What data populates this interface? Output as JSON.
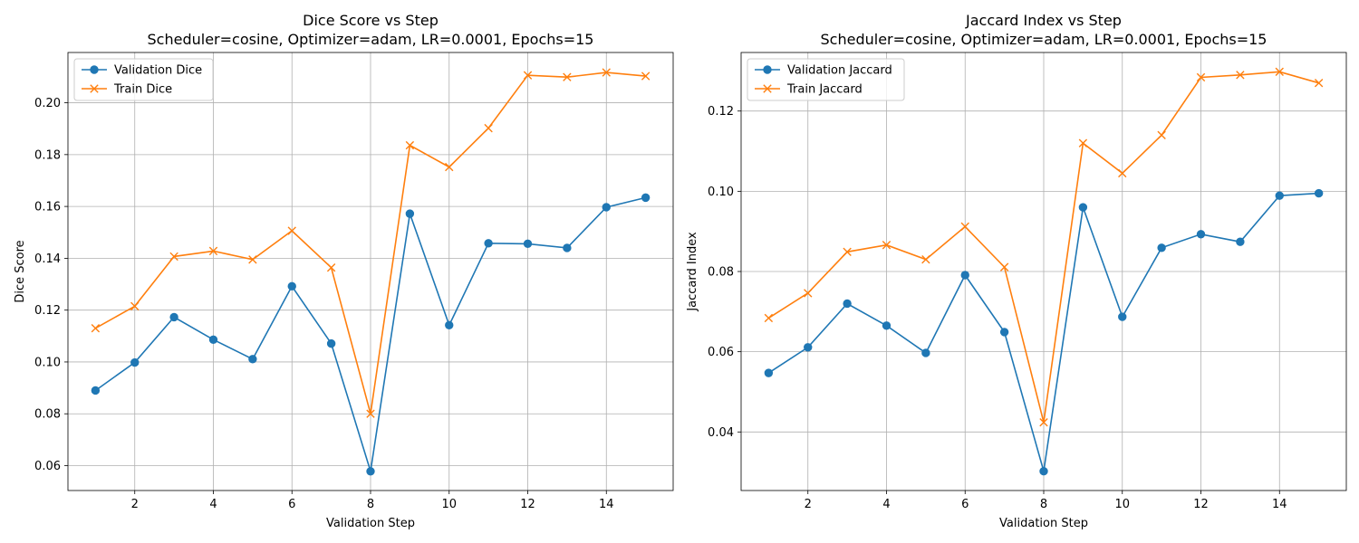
{
  "chart_data": [
    {
      "type": "line",
      "title": "Dice Score vs Step",
      "subtitle": "Scheduler=cosine, Optimizer=adam, LR=0.0001, Epochs=15",
      "xlabel": "Validation Step",
      "ylabel": "Dice Score",
      "x": [
        1,
        2,
        3,
        4,
        5,
        6,
        7,
        8,
        9,
        10,
        11,
        12,
        13,
        14,
        15
      ],
      "xlim": [
        0.3,
        15.7
      ],
      "ylim": [
        0.0504,
        0.2194
      ],
      "xticks": [
        2,
        4,
        6,
        8,
        10,
        12,
        14
      ],
      "yticks": [
        0.06,
        0.08,
        0.1,
        0.12,
        0.14,
        0.16,
        0.18,
        0.2
      ],
      "ytick_labels": [
        "0.06",
        "0.08",
        "0.10",
        "0.12",
        "0.14",
        "0.16",
        "0.18",
        "0.20"
      ],
      "grid": true,
      "legend_position": "upper-left",
      "series": [
        {
          "name": "Validation Dice",
          "color": "#1f77b4",
          "marker": "circle",
          "values": [
            0.089,
            0.0998,
            0.1173,
            0.1086,
            0.1011,
            0.1292,
            0.1071,
            0.0578,
            0.1572,
            0.1142,
            0.1458,
            0.1456,
            0.144,
            0.1597,
            0.1634
          ]
        },
        {
          "name": "Train Dice",
          "color": "#ff7f0e",
          "marker": "x",
          "values": [
            0.113,
            0.1215,
            0.1407,
            0.1428,
            0.1395,
            0.1506,
            0.1364,
            0.08,
            0.1836,
            0.1752,
            0.1902,
            0.2106,
            0.2099,
            0.2117,
            0.2103
          ]
        }
      ]
    },
    {
      "type": "line",
      "title": "Jaccard Index vs Step",
      "subtitle": "Scheduler=cosine, Optimizer=adam, LR=0.0001, Epochs=15",
      "xlabel": "Validation Step",
      "ylabel": "Jaccard Index",
      "x": [
        1,
        2,
        3,
        4,
        5,
        6,
        7,
        8,
        9,
        10,
        11,
        12,
        13,
        14,
        15
      ],
      "xlim": [
        0.3,
        15.7
      ],
      "ylim": [
        0.0254,
        0.1346
      ],
      "xticks": [
        2,
        4,
        6,
        8,
        10,
        12,
        14
      ],
      "yticks": [
        0.04,
        0.06,
        0.08,
        0.1,
        0.12
      ],
      "ytick_labels": [
        "0.04",
        "0.06",
        "0.08",
        "0.10",
        "0.12"
      ],
      "grid": true,
      "legend_position": "upper-left",
      "series": [
        {
          "name": "Validation Jaccard",
          "color": "#1f77b4",
          "marker": "circle",
          "values": [
            0.0547,
            0.0611,
            0.072,
            0.0665,
            0.0597,
            0.0791,
            0.0649,
            0.0302,
            0.096,
            0.0687,
            0.0859,
            0.0893,
            0.0874,
            0.0989,
            0.0995
          ]
        },
        {
          "name": "Train Jaccard",
          "color": "#ff7f0e",
          "marker": "x",
          "values": [
            0.0684,
            0.0746,
            0.0849,
            0.0866,
            0.083,
            0.0912,
            0.0811,
            0.0424,
            0.112,
            0.1045,
            0.114,
            0.1284,
            0.129,
            0.1298,
            0.127
          ]
        }
      ]
    }
  ]
}
